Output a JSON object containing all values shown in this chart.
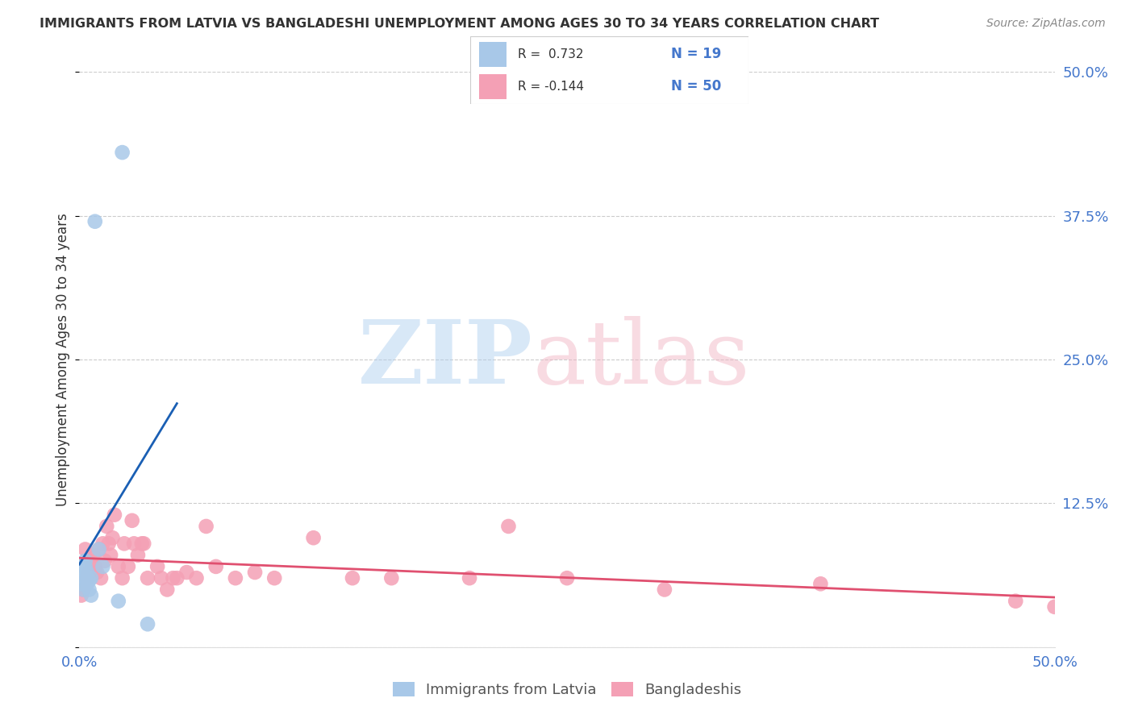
{
  "title": "IMMIGRANTS FROM LATVIA VS BANGLADESHI UNEMPLOYMENT AMONG AGES 30 TO 34 YEARS CORRELATION CHART",
  "source": "Source: ZipAtlas.com",
  "ylabel": "Unemployment Among Ages 30 to 34 years",
  "ytick_vals": [
    0.0,
    0.125,
    0.25,
    0.375,
    0.5
  ],
  "xlim": [
    0.0,
    0.5
  ],
  "ylim": [
    0.0,
    0.5
  ],
  "legend_label_latvia": "Immigrants from Latvia",
  "legend_label_bangla": "Bangladeshis",
  "blue_color": "#a8c8e8",
  "pink_color": "#f4a0b5",
  "blue_line_color": "#1a5fb4",
  "pink_line_color": "#e05070",
  "blue_text_color": "#4477cc",
  "text_color": "#333333",
  "grid_color": "#cccccc",
  "latvia_x": [
    0.001,
    0.001,
    0.002,
    0.002,
    0.003,
    0.003,
    0.003,
    0.004,
    0.004,
    0.005,
    0.005,
    0.006,
    0.006,
    0.008,
    0.01,
    0.012,
    0.02,
    0.022,
    0.035
  ],
  "latvia_y": [
    0.055,
    0.065,
    0.05,
    0.07,
    0.06,
    0.07,
    0.075,
    0.055,
    0.065,
    0.05,
    0.058,
    0.045,
    0.06,
    0.37,
    0.085,
    0.07,
    0.04,
    0.43,
    0.02
  ],
  "bangla_x": [
    0.001,
    0.002,
    0.003,
    0.004,
    0.005,
    0.006,
    0.007,
    0.008,
    0.009,
    0.01,
    0.011,
    0.012,
    0.013,
    0.014,
    0.015,
    0.016,
    0.017,
    0.018,
    0.02,
    0.022,
    0.023,
    0.025,
    0.027,
    0.028,
    0.03,
    0.032,
    0.033,
    0.035,
    0.04,
    0.042,
    0.045,
    0.048,
    0.05,
    0.055,
    0.06,
    0.065,
    0.07,
    0.08,
    0.09,
    0.1,
    0.12,
    0.14,
    0.16,
    0.2,
    0.22,
    0.25,
    0.3,
    0.38,
    0.48,
    0.5
  ],
  "bangla_y": [
    0.045,
    0.05,
    0.085,
    0.06,
    0.065,
    0.075,
    0.08,
    0.07,
    0.065,
    0.085,
    0.06,
    0.09,
    0.075,
    0.105,
    0.09,
    0.08,
    0.095,
    0.115,
    0.07,
    0.06,
    0.09,
    0.07,
    0.11,
    0.09,
    0.08,
    0.09,
    0.09,
    0.06,
    0.07,
    0.06,
    0.05,
    0.06,
    0.06,
    0.065,
    0.06,
    0.105,
    0.07,
    0.06,
    0.065,
    0.06,
    0.095,
    0.06,
    0.06,
    0.06,
    0.105,
    0.06,
    0.05,
    0.055,
    0.04,
    0.035
  ]
}
